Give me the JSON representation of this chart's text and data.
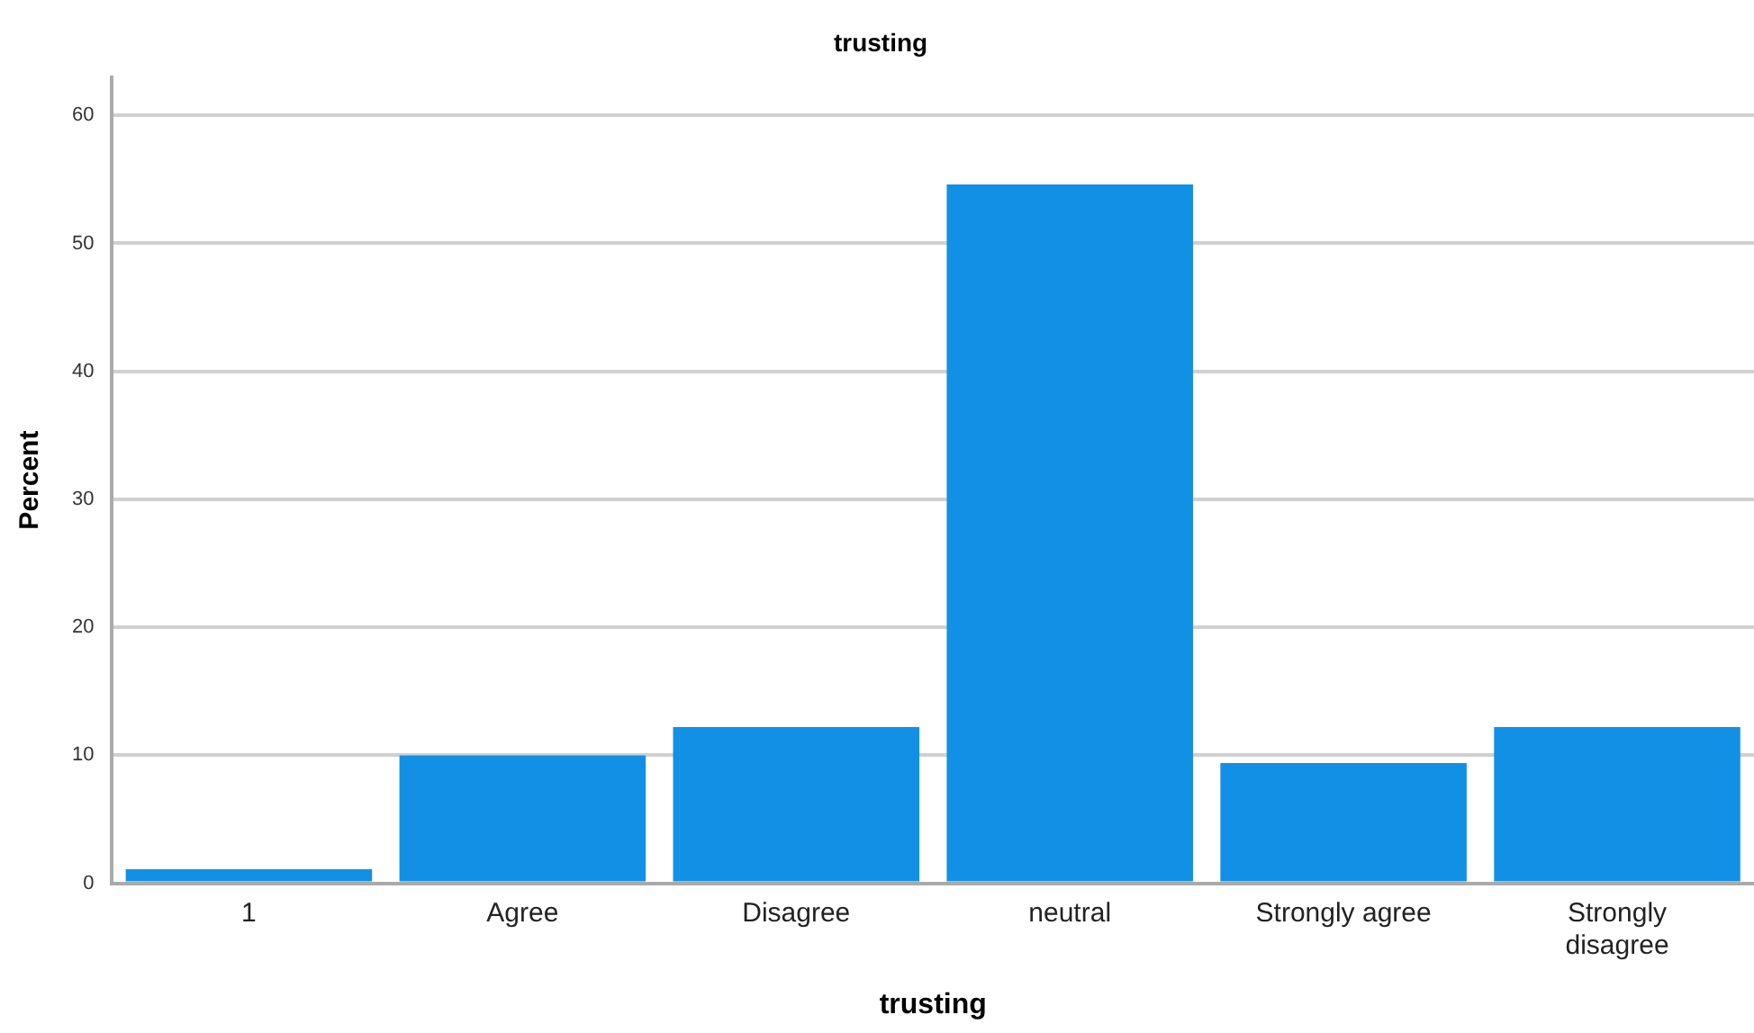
{
  "chart_data": {
    "type": "bar",
    "title": "trusting",
    "xlabel": "trusting",
    "ylabel": "Percent",
    "categories": [
      "1",
      "Agree",
      "Disagree",
      "neutral",
      "Strongly agree",
      "Strongly disagree"
    ],
    "values": [
      1.1,
      10.0,
      12.2,
      54.6,
      9.4,
      12.2
    ],
    "color": "#1290e6",
    "ylim": [
      0,
      63
    ],
    "yticks": [
      0,
      10,
      20,
      30,
      40,
      50,
      60
    ],
    "grid": "y",
    "legend": false
  }
}
